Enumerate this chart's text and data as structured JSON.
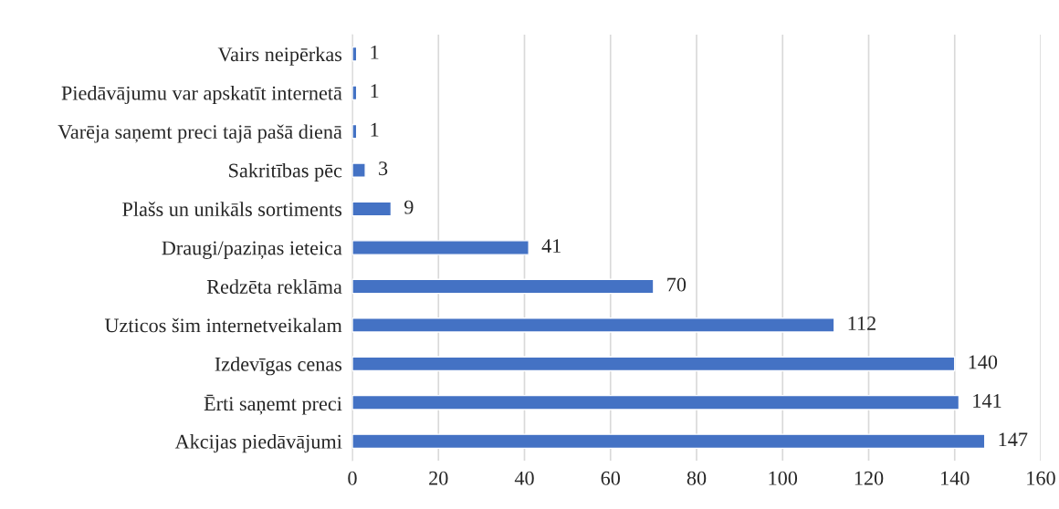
{
  "chart_data": {
    "type": "bar",
    "orientation": "horizontal",
    "categories": [
      "Vairs neipērkas",
      "Piedāvājumu var apskatīt internetā",
      "Varēja saņemt preci tajā pašā dienā",
      "Sakritības pēc",
      "Plašs un unikāls sortiments",
      "Draugi/paziņas ieteica",
      "Redzēta reklāma",
      "Uzticos šim internetveikalam",
      "Izdevīgas cenas",
      "Ērti saņemt preci",
      "Akcijas piedāvājumi"
    ],
    "values": [
      1,
      1,
      1,
      3,
      9,
      41,
      70,
      112,
      140,
      141,
      147
    ],
    "color": "#4472c4",
    "xlim": [
      0,
      160
    ],
    "xticks": [
      0,
      20,
      40,
      60,
      80,
      100,
      120,
      140,
      160
    ],
    "grid": "x",
    "data_labels": true
  }
}
